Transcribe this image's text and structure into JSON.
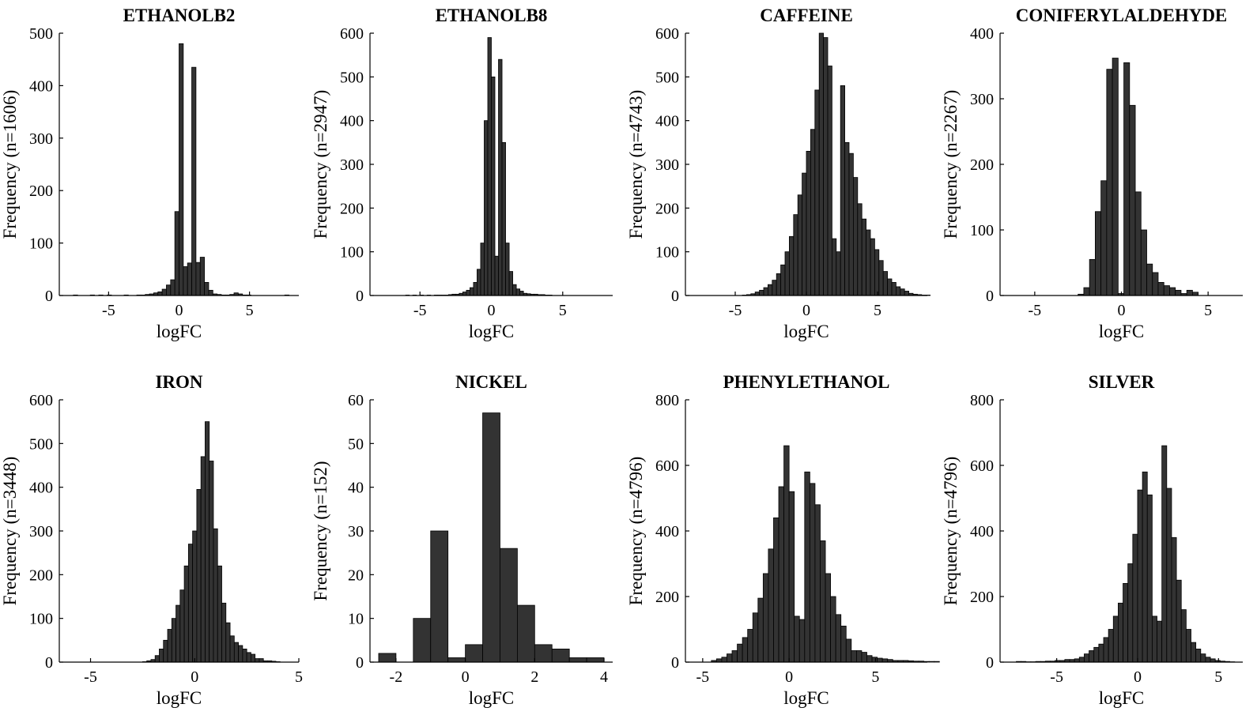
{
  "chart_data": [
    {
      "type": "bar",
      "title": "ETHANOLB2",
      "xlabel": "logFC",
      "ylabel": "Frequency (n=1606)",
      "xlim": [
        -8.5,
        8.5
      ],
      "ylim": [
        0,
        500
      ],
      "xticks": [
        -5,
        0,
        5
      ],
      "yticks": [
        0,
        100,
        200,
        300,
        400,
        500
      ],
      "bin_start": -7.5,
      "bin_width": 0.3,
      "values": [
        1,
        0,
        0,
        0,
        1,
        0,
        1,
        0,
        1,
        0,
        0,
        0,
        1,
        0,
        0,
        1,
        1,
        2,
        3,
        5,
        7,
        12,
        20,
        30,
        160,
        480,
        55,
        62,
        435,
        63,
        73,
        25,
        10,
        3,
        2,
        1,
        1,
        2,
        5,
        3,
        1,
        1,
        0,
        0,
        0,
        0,
        0,
        0,
        0,
        0,
        1
      ]
    },
    {
      "type": "bar",
      "title": "ETHANOLB8",
      "xlabel": "logFC",
      "ylabel": "Frequency (n=2947)",
      "xlim": [
        -8.5,
        8.5
      ],
      "ylim": [
        0,
        600
      ],
      "xticks": [
        -5,
        0,
        5
      ],
      "yticks": [
        0,
        100,
        200,
        300,
        400,
        500,
        600
      ],
      "bin_start": -6.0,
      "bin_width": 0.25,
      "values": [
        1,
        0,
        1,
        0,
        1,
        0,
        1,
        0,
        1,
        1,
        1,
        1,
        2,
        3,
        3,
        5,
        8,
        12,
        18,
        30,
        60,
        120,
        400,
        590,
        500,
        90,
        540,
        350,
        120,
        55,
        25,
        15,
        10,
        5,
        4,
        3,
        3,
        2,
        2,
        1,
        1
      ]
    },
    {
      "type": "bar",
      "title": "CAFFEINE",
      "xlabel": "logFC",
      "ylabel": "Frequency (n=4743)",
      "xlim": [
        -8.5,
        8.5
      ],
      "ylim": [
        0,
        600
      ],
      "xticks": [
        -5,
        0,
        5
      ],
      "yticks": [
        0,
        100,
        200,
        300,
        400,
        500,
        600
      ],
      "bin_start": -4.5,
      "bin_width": 0.3,
      "values": [
        1,
        2,
        4,
        8,
        12,
        18,
        25,
        35,
        50,
        70,
        100,
        135,
        185,
        230,
        280,
        330,
        380,
        470,
        600,
        590,
        525,
        130,
        100,
        480,
        350,
        325,
        270,
        210,
        175,
        150,
        130,
        105,
        80,
        55,
        38,
        30,
        20,
        15,
        10,
        5,
        3,
        2,
        1,
        1
      ]
    },
    {
      "type": "bar",
      "title": "CONIFERYLALDEHYDE",
      "xlabel": "logFC",
      "ylabel": "Frequency (n=2267)",
      "xlim": [
        -7,
        7
      ],
      "ylim": [
        0,
        400
      ],
      "xticks": [
        -5,
        0,
        5
      ],
      "yticks": [
        0,
        100,
        200,
        300,
        400
      ],
      "bin_start": -2.5,
      "bin_width": 0.33,
      "values": [
        2,
        12,
        55,
        128,
        175,
        345,
        362,
        3,
        355,
        290,
        158,
        100,
        48,
        35,
        20,
        15,
        12,
        8,
        3,
        8,
        5
      ]
    },
    {
      "type": "bar",
      "title": "IRON",
      "xlabel": "logFC",
      "ylabel": "Frequency (n=3448)",
      "xlim": [
        -6.5,
        5
      ],
      "ylim": [
        0,
        600
      ],
      "xticks": [
        -5,
        0,
        5
      ],
      "yticks": [
        0,
        100,
        200,
        300,
        400,
        500,
        600
      ],
      "bin_start": -2.5,
      "bin_width": 0.2,
      "values": [
        1,
        3,
        6,
        15,
        30,
        50,
        75,
        100,
        130,
        165,
        220,
        270,
        300,
        395,
        470,
        550,
        460,
        305,
        220,
        135,
        90,
        60,
        45,
        38,
        30,
        22,
        18,
        8,
        8,
        3,
        3,
        2,
        1
      ]
    },
    {
      "type": "bar",
      "title": "NICKEL",
      "xlabel": "logFC",
      "ylabel": "Frequency (n=152)",
      "xlim": [
        -2.75,
        4.25
      ],
      "ylim": [
        0,
        60
      ],
      "xticks": [
        -2,
        0,
        2,
        4
      ],
      "yticks": [
        0,
        10,
        20,
        30,
        40,
        50,
        60
      ],
      "bin_start": -2.5,
      "bin_width": 0.5,
      "values": [
        2,
        0,
        10,
        30,
        1,
        4,
        57,
        26,
        13,
        4,
        3,
        1,
        1
      ]
    },
    {
      "type": "bar",
      "title": "PHENYLETHANOL",
      "xlabel": "logFC",
      "ylabel": "Frequency (n=4796)",
      "xlim": [
        -6,
        8
      ],
      "ylim": [
        0,
        800
      ],
      "xticks": [
        -5,
        0,
        5
      ],
      "yticks": [
        0,
        200,
        400,
        600,
        800
      ],
      "bin_start": -4.5,
      "bin_width": 0.3,
      "values": [
        5,
        10,
        15,
        25,
        35,
        55,
        75,
        100,
        150,
        195,
        270,
        345,
        440,
        535,
        660,
        520,
        140,
        130,
        580,
        545,
        480,
        370,
        270,
        200,
        145,
        110,
        70,
        35,
        35,
        30,
        20,
        15,
        12,
        10,
        8,
        5,
        5,
        5,
        4,
        3,
        3,
        2,
        2,
        2
      ]
    },
    {
      "type": "bar",
      "title": "SILVER",
      "xlabel": "logFC",
      "ylabel": "Frequency (n=4796)",
      "xlim": [
        -8.5,
        6.5
      ],
      "ylim": [
        0,
        800
      ],
      "xticks": [
        -5,
        0,
        5
      ],
      "yticks": [
        0,
        200,
        400,
        600,
        800
      ],
      "bin_start": -7.5,
      "bin_width": 0.3,
      "values": [
        2,
        2,
        1,
        1,
        2,
        2,
        3,
        3,
        5,
        5,
        8,
        8,
        10,
        15,
        25,
        35,
        45,
        55,
        75,
        100,
        140,
        180,
        240,
        300,
        390,
        525,
        580,
        510,
        140,
        125,
        660,
        530,
        380,
        250,
        160,
        100,
        60,
        40,
        25,
        15,
        10,
        5,
        3,
        2,
        1
      ]
    }
  ]
}
